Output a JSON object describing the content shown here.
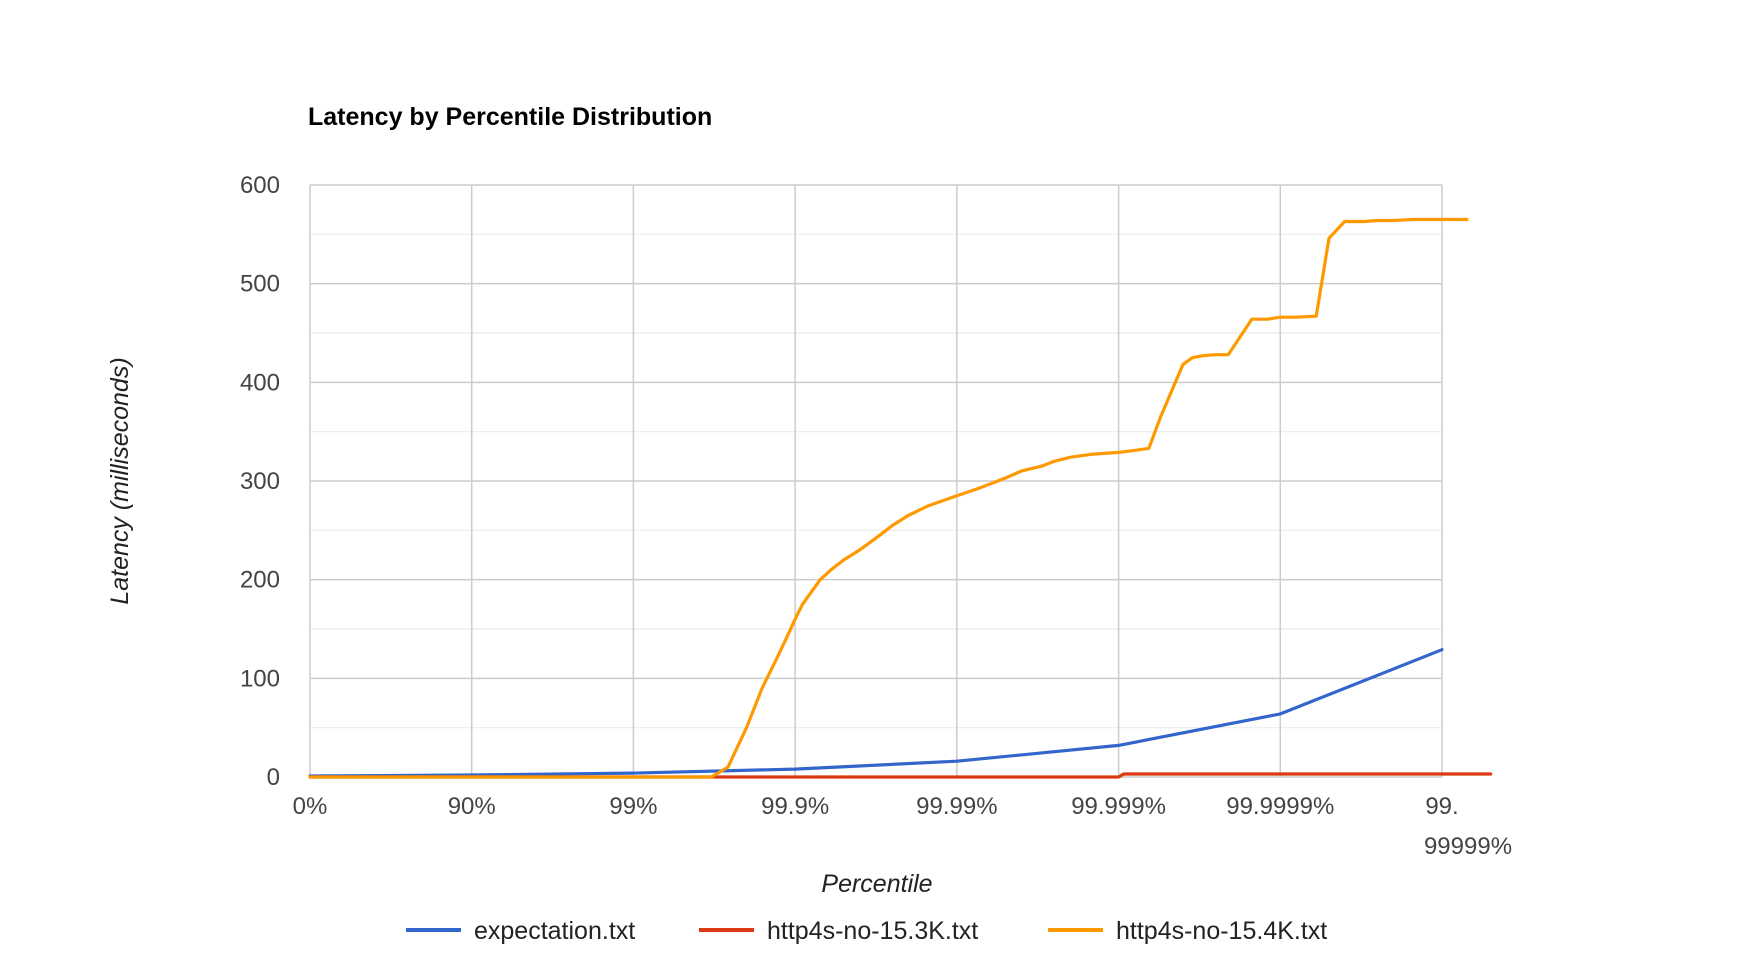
{
  "chart_data": {
    "type": "line",
    "title": "Latency by Percentile Distribution",
    "xlabel": "Percentile",
    "ylabel": "Latency (milliseconds)",
    "x_scale": "log-percentile",
    "x_ticks": [
      {
        "value": 0,
        "label": "0%"
      },
      {
        "value": 90,
        "label": "90%"
      },
      {
        "value": 99,
        "label": "99%"
      },
      {
        "value": 99.9,
        "label": "99.9%"
      },
      {
        "value": 99.99,
        "label": "99.99%"
      },
      {
        "value": 99.999,
        "label": "99.999%"
      },
      {
        "value": 99.9999,
        "label": "99.9999%"
      },
      {
        "value": 99.99999,
        "label": "99.",
        "label_line2": "99999%"
      }
    ],
    "y_ticks": [
      0,
      100,
      200,
      300,
      400,
      500,
      600
    ],
    "ylim": [
      0,
      600
    ],
    "grid": true,
    "legend_position": "bottom",
    "series": [
      {
        "name": "expectation.txt",
        "color": "#3366cc",
        "points": [
          [
            0,
            1
          ],
          [
            90,
            2
          ],
          [
            99,
            4
          ],
          [
            99.9,
            8
          ],
          [
            99.99,
            16
          ],
          [
            99.999,
            32
          ],
          [
            99.9999,
            64
          ],
          [
            99.99999,
            129
          ]
        ]
      },
      {
        "name": "http4s-no-15.3K.txt",
        "color": "#dc3912",
        "points": [
          [
            0,
            0
          ],
          [
            90,
            0
          ],
          [
            99,
            0
          ],
          [
            99.9,
            0
          ],
          [
            99.99,
            0
          ],
          [
            99.999,
            0
          ],
          [
            99.99907,
            3
          ],
          [
            99.9999,
            3
          ],
          [
            99.999994,
            3
          ],
          [
            99.999995,
            3
          ]
        ]
      },
      {
        "name": "http4s-no-15.4K.txt",
        "color": "#ff9900",
        "points": [
          [
            0,
            0
          ],
          [
            90,
            0
          ],
          [
            99,
            0
          ],
          [
            99.67,
            0
          ],
          [
            99.74,
            10
          ],
          [
            99.8,
            50
          ],
          [
            99.84,
            90
          ],
          [
            99.87,
            120
          ],
          [
            99.89,
            145
          ],
          [
            99.9,
            160
          ],
          [
            99.91,
            175
          ],
          [
            99.93,
            200
          ],
          [
            99.94,
            210
          ],
          [
            99.95,
            220
          ],
          [
            99.96,
            230
          ],
          [
            99.97,
            245
          ],
          [
            99.975,
            255
          ],
          [
            99.98,
            265
          ],
          [
            99.985,
            275
          ],
          [
            99.99,
            285
          ],
          [
            99.9925,
            292
          ],
          [
            99.994,
            298
          ],
          [
            99.995,
            303
          ],
          [
            99.996,
            310
          ],
          [
            99.997,
            315
          ],
          [
            99.9975,
            320
          ],
          [
            99.998,
            324
          ],
          [
            99.9985,
            327
          ],
          [
            99.999,
            329
          ],
          [
            99.9992,
            331
          ],
          [
            99.99935,
            333
          ],
          [
            99.99945,
            365
          ],
          [
            99.9996,
            418
          ],
          [
            99.99965,
            425
          ],
          [
            99.9997,
            427
          ],
          [
            99.99975,
            428
          ],
          [
            99.99979,
            428
          ],
          [
            99.99985,
            464
          ],
          [
            99.99988,
            464
          ],
          [
            99.9999,
            466
          ],
          [
            99.99992,
            466
          ],
          [
            99.99994,
            467
          ],
          [
            99.99995,
            546
          ],
          [
            99.99996,
            563
          ],
          [
            99.99997,
            563
          ],
          [
            99.999975,
            564
          ],
          [
            99.99998,
            564
          ],
          [
            99.999985,
            565
          ],
          [
            99.99999,
            565
          ],
          [
            99.999993,
            565
          ]
        ]
      }
    ]
  }
}
